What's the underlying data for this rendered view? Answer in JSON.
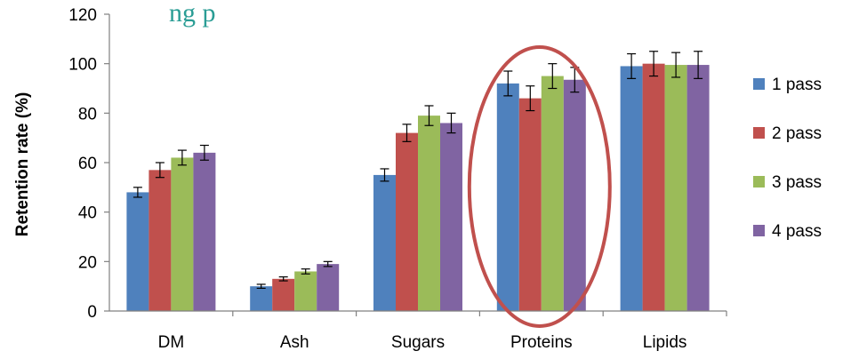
{
  "header_clip": "ng p",
  "chart_data": {
    "type": "bar",
    "title": "",
    "xlabel": "",
    "ylabel": "Retention rate (%)",
    "ylim": [
      0,
      120
    ],
    "yticks": [
      0,
      20,
      40,
      60,
      80,
      100,
      120
    ],
    "categories": [
      "DM",
      "Ash",
      "Sugars",
      "Proteins",
      "Lipids"
    ],
    "series": [
      {
        "name": "1 pass",
        "color": "#4f81bd",
        "values": [
          48,
          10,
          55,
          92,
          99
        ],
        "errors": [
          2,
          0.8,
          2.5,
          5,
          5
        ]
      },
      {
        "name": "2 pass",
        "color": "#c0504d",
        "values": [
          57,
          13,
          72,
          86,
          100
        ],
        "errors": [
          3,
          0.8,
          3.5,
          5,
          5
        ]
      },
      {
        "name": "3 pass",
        "color": "#9bbb59",
        "values": [
          62,
          16,
          79,
          95,
          99.5
        ],
        "errors": [
          3,
          1,
          4,
          5,
          5
        ]
      },
      {
        "name": "4 pass",
        "color": "#8064a2",
        "values": [
          64,
          19,
          76,
          93.5,
          99.5
        ],
        "errors": [
          3,
          1,
          4,
          5,
          5.5
        ]
      }
    ],
    "legend_position": "right",
    "highlight": {
      "category": "Proteins",
      "shape": "ellipse",
      "color": "#c0504d"
    },
    "grid": false
  }
}
